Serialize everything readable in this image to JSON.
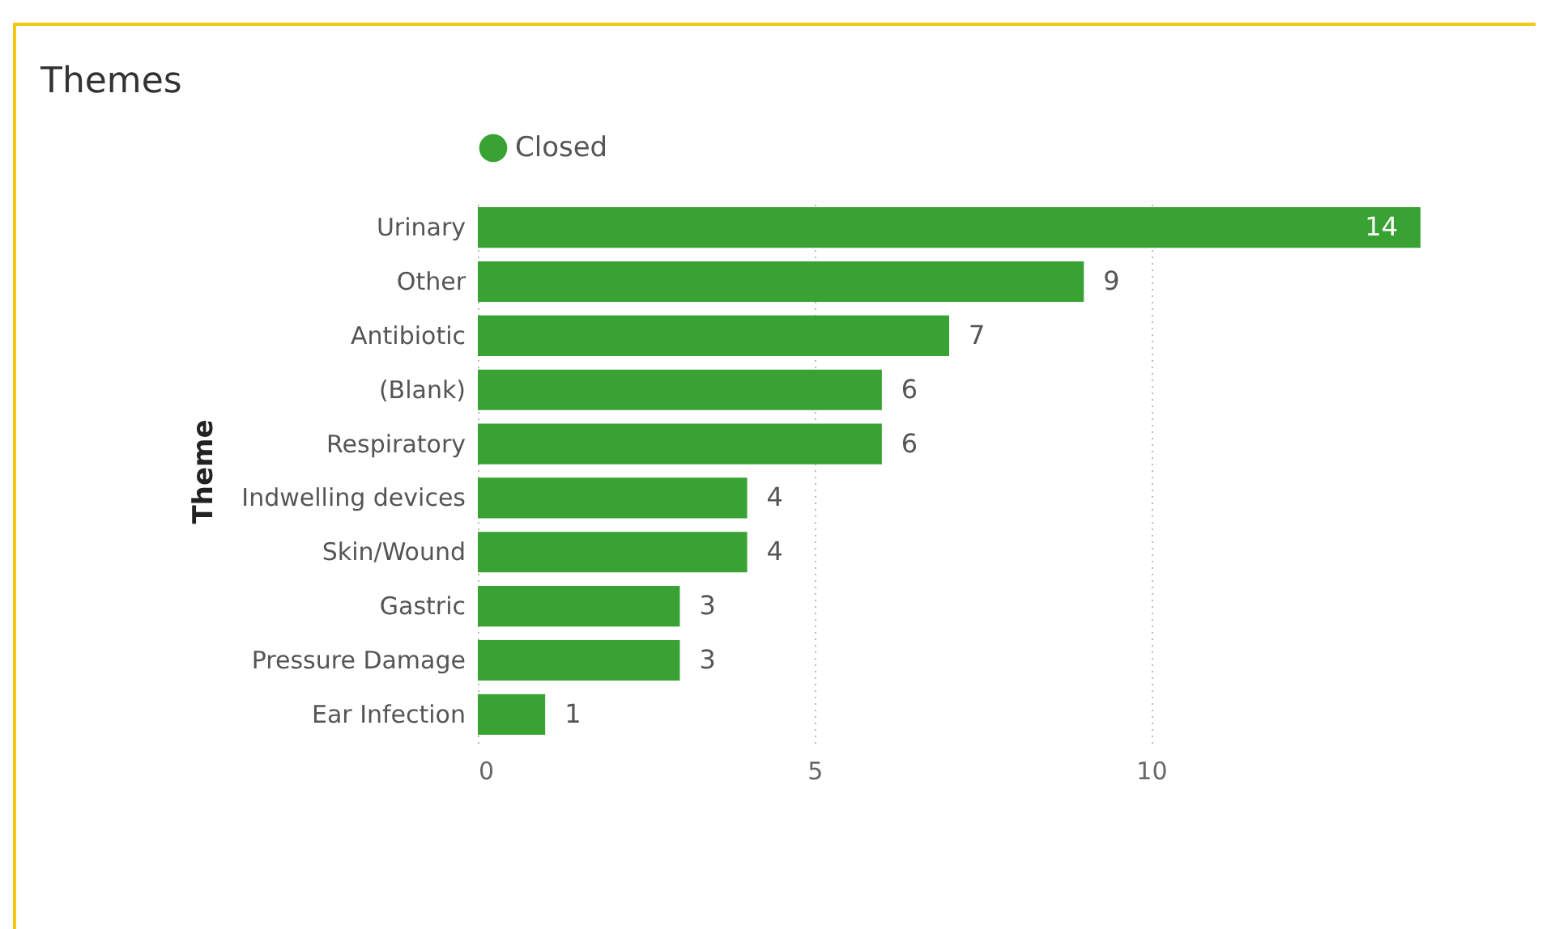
{
  "chart_data": {
    "type": "bar",
    "orientation": "horizontal",
    "title": "Themes",
    "ylabel": "Theme",
    "categories": [
      "Urinary",
      "Other",
      "Antibiotic",
      "(Blank)",
      "Respiratory",
      "Indwelling devices",
      "Skin/Wound",
      "Gastric",
      "Pressure Damage",
      "Ear Infection"
    ],
    "series": [
      {
        "name": "Closed",
        "color": "#38a232",
        "values": [
          14,
          9,
          7,
          6,
          6,
          4,
          4,
          3,
          3,
          1
        ]
      }
    ],
    "xlim": [
      0,
      14
    ],
    "xticks": [
      0,
      5,
      10
    ],
    "grid": "x",
    "legend": "top",
    "data_labels": true
  }
}
